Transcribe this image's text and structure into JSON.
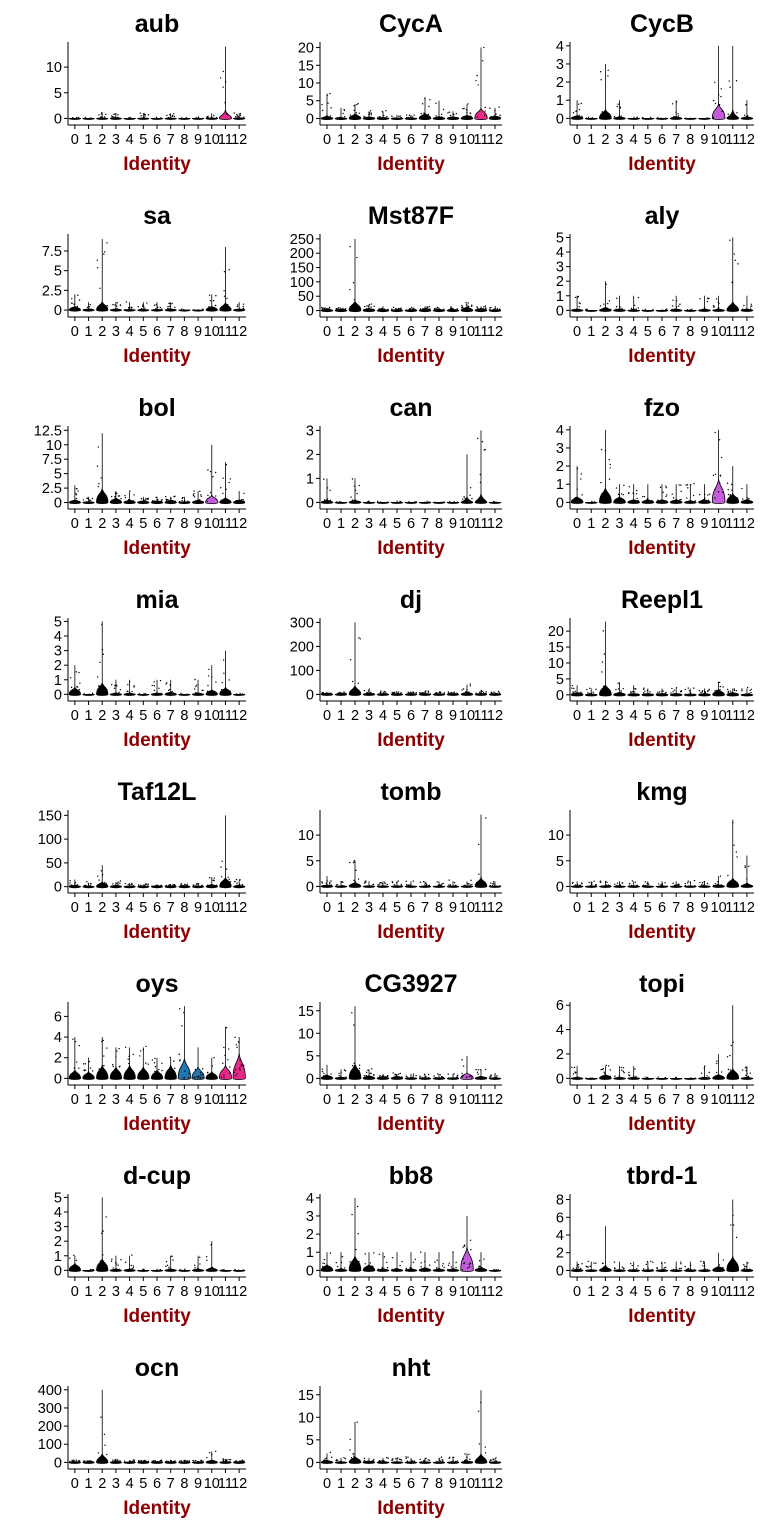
{
  "figure": {
    "x_axis_label": "Identity",
    "x_axis_label_color": "#8b0000",
    "categories": [
      "0",
      "1",
      "2",
      "3",
      "4",
      "5",
      "6",
      "7",
      "8",
      "9",
      "10",
      "11",
      "12"
    ]
  },
  "chart_data": [
    {
      "type": "violin",
      "title": "aub",
      "yticks": [
        0,
        5,
        10
      ],
      "ylim": [
        -0.7,
        14.5
      ],
      "values": [
        0,
        0,
        0.05,
        0.1,
        0,
        0.05,
        0,
        0.05,
        0,
        0,
        0.05,
        0.6,
        0.1
      ],
      "max": [
        0,
        0,
        1,
        1,
        0,
        1,
        0,
        1,
        0,
        0,
        1,
        14,
        1
      ],
      "highlight": {
        "11": "#e7298a"
      }
    },
    {
      "type": "violin",
      "title": "CycA",
      "yticks": [
        0,
        5,
        10,
        15,
        20
      ],
      "ylim": [
        -1,
        21
      ],
      "values": [
        0.3,
        0.1,
        0.8,
        0.3,
        0.2,
        0.1,
        0.1,
        0.9,
        0.3,
        0.3,
        0.6,
        1.8,
        0.5
      ],
      "max": [
        7,
        3,
        4,
        2,
        2,
        1,
        1,
        6,
        5,
        2,
        4,
        20,
        3
      ],
      "highlight": {
        "11": "#e7298a"
      }
    },
    {
      "type": "violin",
      "title": "CycB",
      "yticks": [
        0,
        1,
        2,
        3,
        4
      ],
      "ylim": [
        -0.2,
        4.1
      ],
      "values": [
        0.1,
        0,
        0.3,
        0.05,
        0,
        0,
        0,
        0.05,
        0,
        0,
        0.5,
        0.1,
        0.05
      ],
      "max": [
        1,
        0,
        3,
        1,
        0,
        0,
        0,
        1,
        0,
        0,
        4,
        4,
        1
      ],
      "highlight": {
        "10": "#c45bd9"
      }
    },
    {
      "type": "violin",
      "title": "sa",
      "yticks": [
        0,
        2.5,
        5,
        7.5
      ],
      "ylim": [
        -0.5,
        9.4
      ],
      "values": [
        0.3,
        0.1,
        0.6,
        0.1,
        0.05,
        0.05,
        0.05,
        0.1,
        0,
        0,
        0.3,
        0.5,
        0.1
      ],
      "max": [
        2,
        1,
        9,
        1,
        1,
        1,
        1,
        1,
        0,
        0,
        2,
        8,
        1
      ],
      "highlight": {}
    },
    {
      "type": "violin",
      "title": "Mst87F",
      "yticks": [
        0,
        50,
        100,
        150,
        200,
        250
      ],
      "ylim": [
        -12,
        260
      ],
      "values": [
        4,
        3,
        20,
        5,
        3,
        2,
        2,
        4,
        3,
        3,
        8,
        5,
        2
      ],
      "max": [
        10,
        8,
        250,
        20,
        15,
        8,
        8,
        15,
        10,
        10,
        25,
        15,
        10
      ],
      "highlight": {}
    },
    {
      "type": "violin",
      "title": "aly",
      "yticks": [
        0,
        1,
        2,
        3,
        4,
        5
      ],
      "ylim": [
        -0.25,
        5.1
      ],
      "values": [
        0.05,
        0,
        0.1,
        0.05,
        0,
        0,
        0,
        0.05,
        0,
        0.05,
        0.05,
        0.3,
        0.05
      ],
      "max": [
        1,
        0,
        2,
        1,
        1,
        0,
        0,
        1,
        0,
        1,
        1,
        5,
        1
      ],
      "highlight": {}
    },
    {
      "type": "violin",
      "title": "bol",
      "yticks": [
        0,
        2.5,
        5,
        7.5,
        10,
        12.5
      ],
      "ylim": [
        -0.6,
        12.9
      ],
      "values": [
        0.3,
        0.1,
        1.5,
        0.5,
        0.3,
        0.2,
        0.2,
        0.3,
        0.1,
        0.3,
        0.8,
        0.5,
        0.3
      ],
      "max": [
        3,
        1,
        12,
        2,
        2,
        1,
        1,
        1,
        1,
        2,
        10,
        7,
        2
      ],
      "highlight": {
        "10": "#c45bd9"
      }
    },
    {
      "type": "violin",
      "title": "can",
      "yticks": [
        0,
        1,
        2,
        3
      ],
      "ylim": [
        -0.15,
        3.1
      ],
      "values": [
        0.05,
        0,
        0.05,
        0,
        0,
        0,
        0,
        0,
        0,
        0,
        0.05,
        0.1,
        0
      ],
      "max": [
        1,
        0,
        1,
        0,
        0,
        0,
        0,
        0,
        0,
        0,
        2,
        3,
        0
      ],
      "highlight": {}
    },
    {
      "type": "violin",
      "title": "fzo",
      "yticks": [
        0,
        1,
        2,
        3,
        4
      ],
      "ylim": [
        -0.2,
        4.1
      ],
      "values": [
        0.2,
        0,
        0.5,
        0.2,
        0.1,
        0.1,
        0.1,
        0.1,
        0.05,
        0.1,
        0.8,
        0.3,
        0.1
      ],
      "max": [
        2,
        0,
        4,
        1,
        1,
        1,
        1,
        1,
        1,
        1,
        4,
        2,
        1
      ],
      "highlight": {
        "10": "#c45bd9"
      }
    },
    {
      "type": "violin",
      "title": "mia",
      "yticks": [
        0,
        1,
        2,
        3,
        4,
        5
      ],
      "ylim": [
        -0.25,
        5.1
      ],
      "values": [
        0.3,
        0,
        0.5,
        0.05,
        0.05,
        0,
        0.05,
        0.1,
        0,
        0.05,
        0.2,
        0.3,
        0
      ],
      "max": [
        2,
        0,
        5,
        1,
        1,
        0,
        1,
        1,
        0,
        1,
        2,
        3,
        0
      ],
      "highlight": {}
    },
    {
      "type": "violin",
      "title": "dj",
      "yticks": [
        0,
        100,
        200,
        300
      ],
      "ylim": [
        -15,
        310
      ],
      "values": [
        3,
        2,
        20,
        4,
        2,
        2,
        2,
        3,
        2,
        2,
        6,
        3,
        2
      ],
      "max": [
        10,
        8,
        300,
        20,
        10,
        8,
        8,
        10,
        8,
        8,
        40,
        15,
        8
      ],
      "highlight": {}
    },
    {
      "type": "violin",
      "title": "Reepl1",
      "yticks": [
        0,
        5,
        10,
        15,
        20
      ],
      "ylim": [
        -1,
        23.5
      ],
      "values": [
        0.5,
        0.2,
        2,
        0.5,
        0.3,
        0.3,
        0.3,
        0.3,
        0.2,
        0.3,
        1,
        0.5,
        0.2
      ],
      "max": [
        3,
        2,
        23,
        4,
        3,
        2,
        2,
        2,
        2,
        2,
        4,
        2,
        2
      ],
      "highlight": {}
    },
    {
      "type": "violin",
      "title": "Taf12L",
      "yticks": [
        0,
        50,
        100,
        150
      ],
      "ylim": [
        -7,
        157
      ],
      "values": [
        2,
        1,
        6,
        2,
        1,
        1,
        1,
        1,
        1,
        1,
        3,
        12,
        2
      ],
      "max": [
        15,
        8,
        45,
        10,
        8,
        5,
        5,
        5,
        5,
        8,
        20,
        150,
        15
      ],
      "highlight": {}
    },
    {
      "type": "violin",
      "title": "tomb",
      "yticks": [
        0,
        5,
        10
      ],
      "ylim": [
        -0.7,
        14.5
      ],
      "values": [
        0.2,
        0.05,
        0.5,
        0.1,
        0.1,
        0.1,
        0.05,
        0.05,
        0.05,
        0.05,
        0.1,
        1,
        0.05
      ],
      "max": [
        2,
        1,
        5,
        1,
        1,
        1,
        1,
        1,
        1,
        1,
        1,
        14,
        1
      ],
      "highlight": {}
    },
    {
      "type": "violin",
      "title": "kmg",
      "yticks": [
        0,
        5,
        10
      ],
      "ylim": [
        -0.7,
        14.5
      ],
      "values": [
        0.1,
        0.05,
        0.1,
        0.05,
        0.05,
        0.05,
        0.05,
        0.05,
        0.05,
        0.1,
        0.2,
        1,
        0.3
      ],
      "max": [
        1,
        1,
        1,
        1,
        1,
        1,
        1,
        1,
        1,
        1,
        2,
        13,
        6
      ],
      "highlight": {}
    },
    {
      "type": "violin",
      "title": "oys",
      "yticks": [
        0,
        2,
        4,
        6
      ],
      "ylim": [
        -0.35,
        7.2
      ],
      "values": [
        0.5,
        0.4,
        0.8,
        0.7,
        0.8,
        0.7,
        0.5,
        0.8,
        1.2,
        0.7,
        0.4,
        0.8,
        1.5
      ],
      "max": [
        4,
        2,
        4,
        3,
        3,
        3,
        2,
        2,
        7,
        3,
        2,
        5,
        4
      ],
      "highlight": {
        "8": "#1f78b4",
        "9": "#1f78b4",
        "11": "#e7298a",
        "12": "#e7298a"
      }
    },
    {
      "type": "violin",
      "title": "CG3927",
      "yticks": [
        0,
        5,
        10,
        15
      ],
      "ylim": [
        -0.8,
        16.5
      ],
      "values": [
        0.5,
        0.2,
        2,
        0.4,
        0.3,
        0.3,
        0.1,
        0.1,
        0.1,
        0.1,
        0.8,
        0.3,
        0.1
      ],
      "max": [
        3,
        2,
        16,
        2,
        1,
        1,
        1,
        1,
        1,
        1,
        5,
        2,
        1
      ],
      "highlight": {
        "10": "#c45bd9"
      }
    },
    {
      "type": "violin",
      "title": "topi",
      "yticks": [
        0,
        2,
        4,
        6
      ],
      "ylim": [
        -0.3,
        6.1
      ],
      "values": [
        0.05,
        0,
        0.2,
        0.05,
        0.05,
        0,
        0,
        0,
        0,
        0.05,
        0.2,
        0.5,
        0.05
      ],
      "max": [
        1,
        0,
        1,
        1,
        1,
        0,
        0,
        0,
        0,
        1,
        2,
        6,
        1
      ],
      "highlight": {}
    },
    {
      "type": "violin",
      "title": "d-cup",
      "yticks": [
        0,
        1,
        2,
        3,
        4,
        5
      ],
      "ylim": [
        -0.25,
        5.1
      ],
      "values": [
        0.3,
        0,
        0.5,
        0.05,
        0.05,
        0,
        0,
        0.05,
        0,
        0.05,
        0.1,
        0,
        0
      ],
      "max": [
        1,
        0,
        5,
        1,
        1,
        0,
        0,
        1,
        0,
        1,
        2,
        0,
        0
      ],
      "highlight": {}
    },
    {
      "type": "violin",
      "title": "bb8",
      "yticks": [
        0,
        1,
        2,
        3,
        4
      ],
      "ylim": [
        -0.2,
        4.1
      ],
      "values": [
        0.2,
        0.05,
        0.5,
        0.2,
        0.05,
        0.05,
        0.05,
        0.1,
        0.05,
        0.05,
        0.8,
        0.1,
        0
      ],
      "max": [
        1,
        1,
        4,
        1,
        1,
        1,
        1,
        1,
        1,
        1,
        3,
        1,
        0
      ],
      "highlight": {
        "10": "#c45bd9"
      }
    },
    {
      "type": "violin",
      "title": "tbrd-1",
      "yticks": [
        0,
        2,
        4,
        6,
        8
      ],
      "ylim": [
        -0.4,
        8.4
      ],
      "values": [
        0.1,
        0.05,
        0.2,
        0.05,
        0.05,
        0.05,
        0.05,
        0.05,
        0.05,
        0.05,
        0.3,
        1,
        0.1
      ],
      "max": [
        1,
        1,
        5,
        1,
        1,
        1,
        1,
        1,
        1,
        1,
        2,
        8,
        1
      ],
      "highlight": {}
    },
    {
      "type": "violin",
      "title": "ocn",
      "yticks": [
        0,
        100,
        200,
        300,
        400
      ],
      "ylim": [
        -20,
        410
      ],
      "values": [
        3,
        2,
        25,
        4,
        2,
        2,
        2,
        2,
        2,
        2,
        8,
        3,
        2
      ],
      "max": [
        10,
        8,
        400,
        20,
        10,
        8,
        8,
        8,
        8,
        8,
        60,
        15,
        8
      ],
      "highlight": {}
    },
    {
      "type": "violin",
      "title": "nht",
      "yticks": [
        0,
        5,
        10,
        15
      ],
      "ylim": [
        -0.8,
        16.5
      ],
      "values": [
        0.3,
        0.1,
        0.8,
        0.2,
        0.1,
        0.1,
        0.1,
        0.1,
        0.05,
        0.1,
        0.2,
        1,
        0.1
      ],
      "max": [
        2,
        1,
        9,
        1,
        1,
        1,
        1,
        1,
        1,
        1,
        2,
        16,
        1
      ],
      "highlight": {}
    }
  ]
}
